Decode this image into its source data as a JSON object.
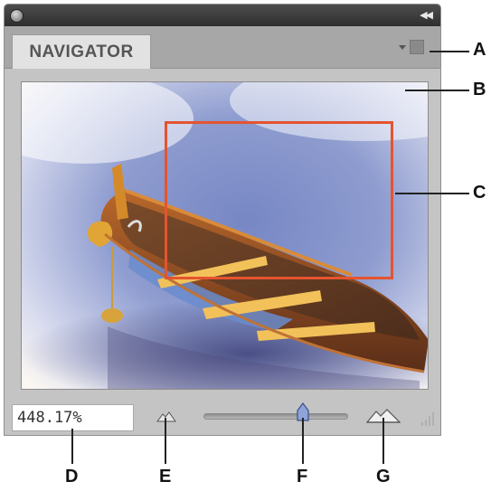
{
  "panel": {
    "tab_label": "NAVIGATOR",
    "zoom_value": "448.17%",
    "accent_color": "#e4542f",
    "zoom_slider_fraction": 0.64,
    "icons": [
      "close-icon",
      "collapse-icon",
      "panel-menu-icon",
      "zoom-out-icon",
      "zoom-slider",
      "zoom-in-icon",
      "resize-grip-icon"
    ]
  },
  "callouts": {
    "A": "A",
    "B": "B",
    "C": "C",
    "D": "D",
    "E": "E",
    "F": "F",
    "G": "G"
  }
}
